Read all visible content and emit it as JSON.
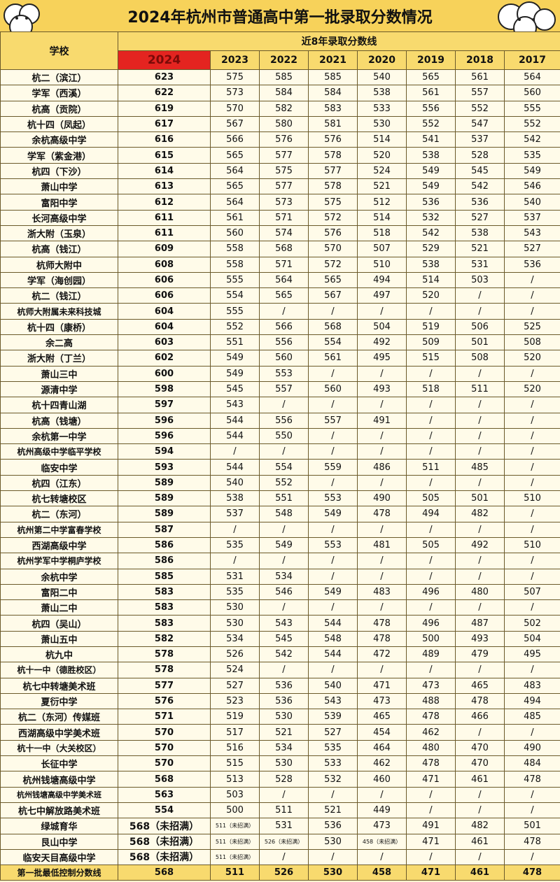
{
  "header": {
    "title": "2024年杭州市普通高中第一批录取分数情况",
    "school_label": "学校",
    "recent_label": "近8年录取分数线",
    "years": [
      "2024",
      "2023",
      "2022",
      "2021",
      "2020",
      "2019",
      "2018",
      "2017"
    ]
  },
  "table": {
    "rows": [
      [
        "杭二（滨江）",
        623,
        575,
        585,
        585,
        540,
        565,
        561,
        564
      ],
      [
        "学军（西溪）",
        622,
        573,
        584,
        584,
        538,
        561,
        557,
        560
      ],
      [
        "杭高（贡院）",
        619,
        570,
        582,
        583,
        533,
        556,
        552,
        555
      ],
      [
        "杭十四（凤起）",
        617,
        567,
        580,
        581,
        530,
        552,
        547,
        552
      ],
      [
        "余杭高级中学",
        616,
        566,
        576,
        576,
        514,
        541,
        537,
        542
      ],
      [
        "学军（紫金港）",
        615,
        565,
        577,
        578,
        520,
        538,
        528,
        535
      ],
      [
        "杭四（下沙）",
        614,
        564,
        575,
        577,
        524,
        549,
        545,
        549
      ],
      [
        "萧山中学",
        613,
        565,
        577,
        578,
        521,
        549,
        542,
        546
      ],
      [
        "富阳中学",
        612,
        564,
        573,
        575,
        512,
        536,
        536,
        540
      ],
      [
        "长河高级中学",
        611,
        561,
        571,
        572,
        514,
        532,
        527,
        537
      ],
      [
        "浙大附（玉泉）",
        611,
        560,
        574,
        576,
        518,
        542,
        538,
        543
      ],
      [
        "杭高（钱江）",
        609,
        558,
        568,
        570,
        507,
        529,
        521,
        527
      ],
      [
        "杭师大附中",
        608,
        558,
        571,
        572,
        510,
        538,
        531,
        536
      ],
      [
        "学军（海创园）",
        606,
        555,
        564,
        565,
        494,
        514,
        503,
        "/"
      ],
      [
        "杭二（钱江）",
        606,
        554,
        565,
        567,
        497,
        520,
        "/",
        "/"
      ],
      [
        "杭师大附属未来科技城",
        604,
        555,
        "/",
        "/",
        "/",
        "/",
        "/",
        "/"
      ],
      [
        "杭十四（康桥）",
        604,
        552,
        566,
        568,
        504,
        519,
        506,
        525
      ],
      [
        "余二高",
        603,
        551,
        556,
        554,
        492,
        509,
        501,
        508
      ],
      [
        "浙大附（丁兰）",
        602,
        549,
        560,
        561,
        495,
        515,
        508,
        520
      ],
      [
        "萧山三中",
        600,
        549,
        553,
        "/",
        "/",
        "/",
        "/",
        "/"
      ],
      [
        "源清中学",
        598,
        545,
        557,
        560,
        493,
        518,
        511,
        520
      ],
      [
        "杭十四青山湖",
        597,
        543,
        "/",
        "/",
        "/",
        "/",
        "/",
        "/"
      ],
      [
        "杭高（钱塘）",
        596,
        544,
        556,
        557,
        491,
        "/",
        "/",
        "/"
      ],
      [
        "余杭第一中学",
        596,
        544,
        550,
        "/",
        "/",
        "/",
        "/",
        "/"
      ],
      [
        "杭州高级中学临平学校",
        594,
        "/",
        "/",
        "/",
        "/",
        "/",
        "/",
        "/"
      ],
      [
        "临安中学",
        593,
        544,
        554,
        559,
        486,
        511,
        485,
        "/"
      ],
      [
        "杭四（江东）",
        589,
        540,
        552,
        "/",
        "/",
        "/",
        "/",
        "/"
      ],
      [
        "杭七转塘校区",
        589,
        538,
        551,
        553,
        490,
        505,
        501,
        510
      ],
      [
        "杭二（东河）",
        589,
        537,
        548,
        549,
        478,
        494,
        482,
        "/"
      ],
      [
        "杭州第二中学富春学校",
        587,
        "/",
        "/",
        "/",
        "/",
        "/",
        "/",
        "/"
      ],
      [
        "西湖高级中学",
        586,
        535,
        549,
        553,
        481,
        505,
        492,
        510
      ],
      [
        "杭州学军中学桐庐学校",
        586,
        "/",
        "/",
        "/",
        "/",
        "/",
        "/",
        "/"
      ],
      [
        "余杭中学",
        585,
        531,
        534,
        "/",
        "/",
        "/",
        "/",
        "/"
      ],
      [
        "富阳二中",
        583,
        535,
        546,
        549,
        483,
        496,
        480,
        507
      ],
      [
        "萧山二中",
        583,
        530,
        "/",
        "/",
        "/",
        "/",
        "/",
        "/"
      ],
      [
        "杭四（吴山）",
        583,
        530,
        543,
        544,
        478,
        496,
        487,
        502
      ],
      [
        "萧山五中",
        582,
        534,
        545,
        548,
        478,
        500,
        493,
        504
      ],
      [
        "杭九中",
        578,
        526,
        542,
        544,
        472,
        489,
        479,
        495
      ],
      [
        "杭十一中（德胜校区）",
        578,
        524,
        "/",
        "/",
        "/",
        "/",
        "/",
        "/"
      ],
      [
        "杭七中转塘美术班",
        577,
        527,
        536,
        540,
        471,
        473,
        465,
        483
      ],
      [
        "夏衍中学",
        576,
        523,
        536,
        543,
        473,
        488,
        478,
        494
      ],
      [
        "杭二（东河）传媒班",
        571,
        519,
        530,
        539,
        465,
        478,
        466,
        485
      ],
      [
        "西湖高级中学美术班",
        570,
        517,
        521,
        527,
        454,
        462,
        "/",
        "/"
      ],
      [
        "杭十一中（大关校区）",
        570,
        516,
        534,
        535,
        464,
        480,
        470,
        490
      ],
      [
        "长征中学",
        570,
        515,
        530,
        533,
        462,
        478,
        470,
        484
      ],
      [
        "杭州钱塘高级中学",
        568,
        513,
        528,
        532,
        460,
        471,
        461,
        478
      ],
      [
        "杭州钱塘高级中学美术班",
        563,
        503,
        "/",
        "/",
        "/",
        "/",
        "/",
        "/"
      ],
      [
        "杭七中解放路美术班",
        554,
        500,
        511,
        521,
        449,
        "/",
        "/",
        "/"
      ],
      [
        "绿城育华",
        "568（未招满）",
        "511（未招满）",
        531,
        536,
        473,
        491,
        482,
        501
      ],
      [
        "艮山中学",
        "568（未招满）",
        "511（未招满）",
        "526（未招满）",
        530,
        "458（未招满）",
        471,
        461,
        478
      ],
      [
        "临安天目高级中学",
        "568（未招满）",
        "511（未招满）",
        "/",
        "/",
        "/",
        "/",
        "/",
        "/"
      ],
      [
        "第一批最低控制分数线",
        568,
        511,
        526,
        530,
        458,
        471,
        461,
        478
      ]
    ]
  }
}
